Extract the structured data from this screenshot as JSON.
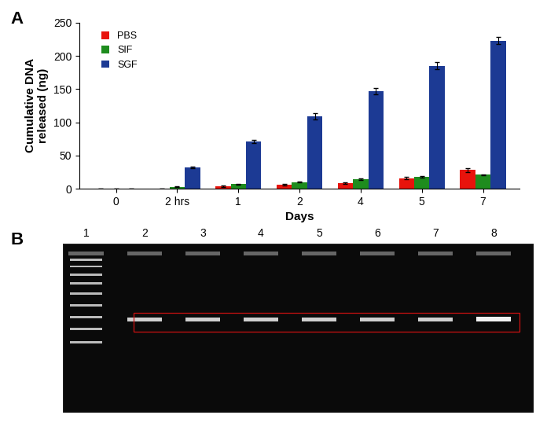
{
  "chart_data": {
    "type": "bar",
    "x_label": "Days",
    "y_label": "Cumulative DNA\nreleased (ng)",
    "categories": [
      "0",
      "2 hrs",
      "1",
      "2",
      "4",
      "5",
      "7"
    ],
    "series": [
      {
        "name": "PBS",
        "color": "#e8130c",
        "values": [
          0,
          0,
          4,
          6,
          8,
          16,
          28
        ],
        "errors": [
          0,
          0,
          1,
          1,
          1,
          2,
          3
        ]
      },
      {
        "name": "SIF",
        "color": "#1e8c1e",
        "values": [
          0,
          3,
          7,
          10,
          14,
          18,
          21
        ],
        "errors": [
          0,
          0.5,
          0.5,
          1,
          1,
          1,
          1
        ]
      },
      {
        "name": "SGF",
        "color": "#1c3a94",
        "values": [
          0,
          32,
          71,
          109,
          147,
          185,
          223
        ],
        "errors": [
          0,
          1,
          2,
          5,
          5,
          5,
          5
        ]
      }
    ],
    "ylim": [
      0,
      250
    ],
    "yticks": [
      0,
      50,
      100,
      150,
      200,
      250
    ],
    "legend": "upper left"
  },
  "panel_labels": [
    "A",
    "B"
  ],
  "gel": {
    "lanes": [
      "1",
      "2",
      "3",
      "4",
      "5",
      "6",
      "7",
      "8"
    ]
  }
}
